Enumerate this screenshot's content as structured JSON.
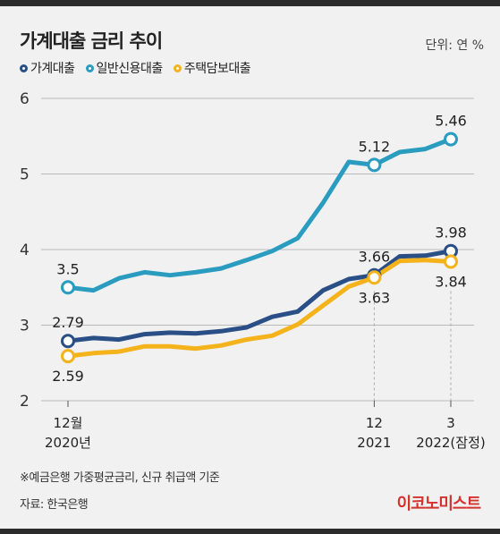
{
  "header": {
    "title": "가계대출 금리 추이",
    "unit": "단위: 연 %"
  },
  "legend": [
    {
      "label": "가계대출",
      "color": "#2a4f86"
    },
    {
      "label": "일반신용대출",
      "color": "#2a9cc0"
    },
    {
      "label": "주택담보대출",
      "color": "#f4b21b"
    }
  ],
  "footer": {
    "note": "※예금은행 가중평균금리, 신규 취급액 기준",
    "source": "자료: 한국은행",
    "brand": "이코노미스트"
  },
  "chart_data": {
    "type": "line",
    "x": [
      "2020-12",
      "2021-01",
      "2021-02",
      "2021-03",
      "2021-04",
      "2021-05",
      "2021-06",
      "2021-07",
      "2021-08",
      "2021-09",
      "2021-10",
      "2021-11",
      "2021-12",
      "2022-01",
      "2022-02",
      "2022-03"
    ],
    "ylim": [
      2,
      6
    ],
    "yticks": [
      2,
      3,
      4,
      5,
      6
    ],
    "xtick_labels": [
      {
        "index": 0,
        "lines": [
          "12월",
          "2020년"
        ]
      },
      {
        "index": 12,
        "lines": [
          "12",
          "2021"
        ]
      },
      {
        "index": 15,
        "lines": [
          "3",
          "2022(잠정)"
        ]
      }
    ],
    "series": [
      {
        "name": "일반신용대출",
        "color": "#2a9cc0",
        "values": [
          3.5,
          3.46,
          3.62,
          3.7,
          3.66,
          3.7,
          3.75,
          3.86,
          3.98,
          4.15,
          4.62,
          5.16,
          5.12,
          5.29,
          5.33,
          5.46
        ]
      },
      {
        "name": "가계대출",
        "color": "#2a4f86",
        "values": [
          2.79,
          2.83,
          2.81,
          2.88,
          2.9,
          2.89,
          2.92,
          2.97,
          3.11,
          3.18,
          3.46,
          3.61,
          3.66,
          3.91,
          3.92,
          3.98
        ]
      },
      {
        "name": "주택담보대출",
        "color": "#f4b21b",
        "values": [
          2.59,
          2.63,
          2.65,
          2.72,
          2.72,
          2.69,
          2.73,
          2.81,
          2.86,
          3.01,
          3.26,
          3.51,
          3.63,
          3.85,
          3.86,
          3.84
        ]
      }
    ],
    "annotations": [
      {
        "series": 0,
        "index": 0,
        "label": "3.5",
        "pos": "above"
      },
      {
        "series": 0,
        "index": 12,
        "label": "5.12",
        "pos": "above"
      },
      {
        "series": 0,
        "index": 15,
        "label": "5.46",
        "pos": "above"
      },
      {
        "series": 1,
        "index": 0,
        "label": "2.79",
        "pos": "above"
      },
      {
        "series": 1,
        "index": 12,
        "label": "3.66",
        "pos": "above"
      },
      {
        "series": 1,
        "index": 15,
        "label": "3.98",
        "pos": "above"
      },
      {
        "series": 2,
        "index": 0,
        "label": "2.59",
        "pos": "below"
      },
      {
        "series": 2,
        "index": 12,
        "label": "3.63",
        "pos": "below"
      },
      {
        "series": 2,
        "index": 15,
        "label": "3.84",
        "pos": "below"
      }
    ]
  }
}
